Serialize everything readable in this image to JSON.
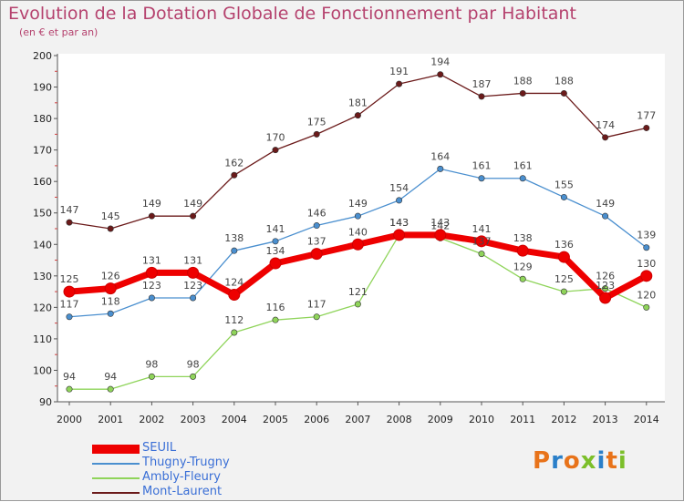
{
  "title": "Evolution de la Dotation Globale de Fonctionnement par Habitant",
  "subtitle": "(en € et par an)",
  "logo": {
    "text": "Proxiti",
    "colors": [
      "#e8731a",
      "#2a7fc9",
      "#e8731a",
      "#7cbf2a",
      "#2a7fc9",
      "#e8731a",
      "#7cbf2a"
    ]
  },
  "chart_data": {
    "type": "line",
    "title": "Evolution de la Dotation Globale de Fonctionnement par Habitant",
    "subtitle": "(en € et par an)",
    "categories": [
      "2000",
      "2001",
      "2002",
      "2003",
      "2004",
      "2005",
      "2006",
      "2007",
      "2008",
      "2009",
      "2010",
      "2011",
      "2012",
      "2013",
      "2014"
    ],
    "ylim": [
      90,
      200
    ],
    "yticks": [
      90,
      100,
      110,
      120,
      130,
      140,
      150,
      160,
      170,
      180,
      190,
      200
    ],
    "grid": false,
    "legend_position": "bottom-left",
    "series": [
      {
        "name": "SEUIL",
        "color": "#ee0000",
        "values": [
          125,
          126,
          131,
          131,
          124,
          134,
          137,
          140,
          143,
          143,
          141,
          138,
          136,
          123,
          130
        ]
      },
      {
        "name": "Thugny-Trugny",
        "color": "#4a8fcf",
        "values": [
          117,
          118,
          123,
          123,
          138,
          141,
          146,
          149,
          154,
          164,
          161,
          161,
          155,
          149,
          139
        ]
      },
      {
        "name": "Ambly-Fleury",
        "color": "#8fd45a",
        "values": [
          94,
          94,
          98,
          98,
          112,
          116,
          117,
          121,
          143,
          142,
          137,
          129,
          125,
          126,
          120
        ]
      },
      {
        "name": "Mont-Laurent",
        "color": "#6b1a1a",
        "values": [
          147,
          145,
          149,
          149,
          162,
          170,
          175,
          181,
          191,
          194,
          187,
          188,
          188,
          174,
          177
        ]
      }
    ]
  }
}
